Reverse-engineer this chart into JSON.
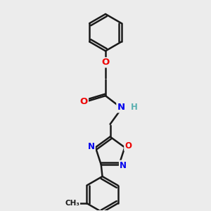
{
  "background_color": "#ececec",
  "bond_color": "#1a1a1a",
  "line_width": 1.8,
  "atom_colors": {
    "C": "#1a1a1a",
    "H": "#5ab0b0",
    "N": "#0000ee",
    "O": "#ee0000"
  },
  "figsize": [
    3.0,
    3.0
  ],
  "dpi": 100
}
